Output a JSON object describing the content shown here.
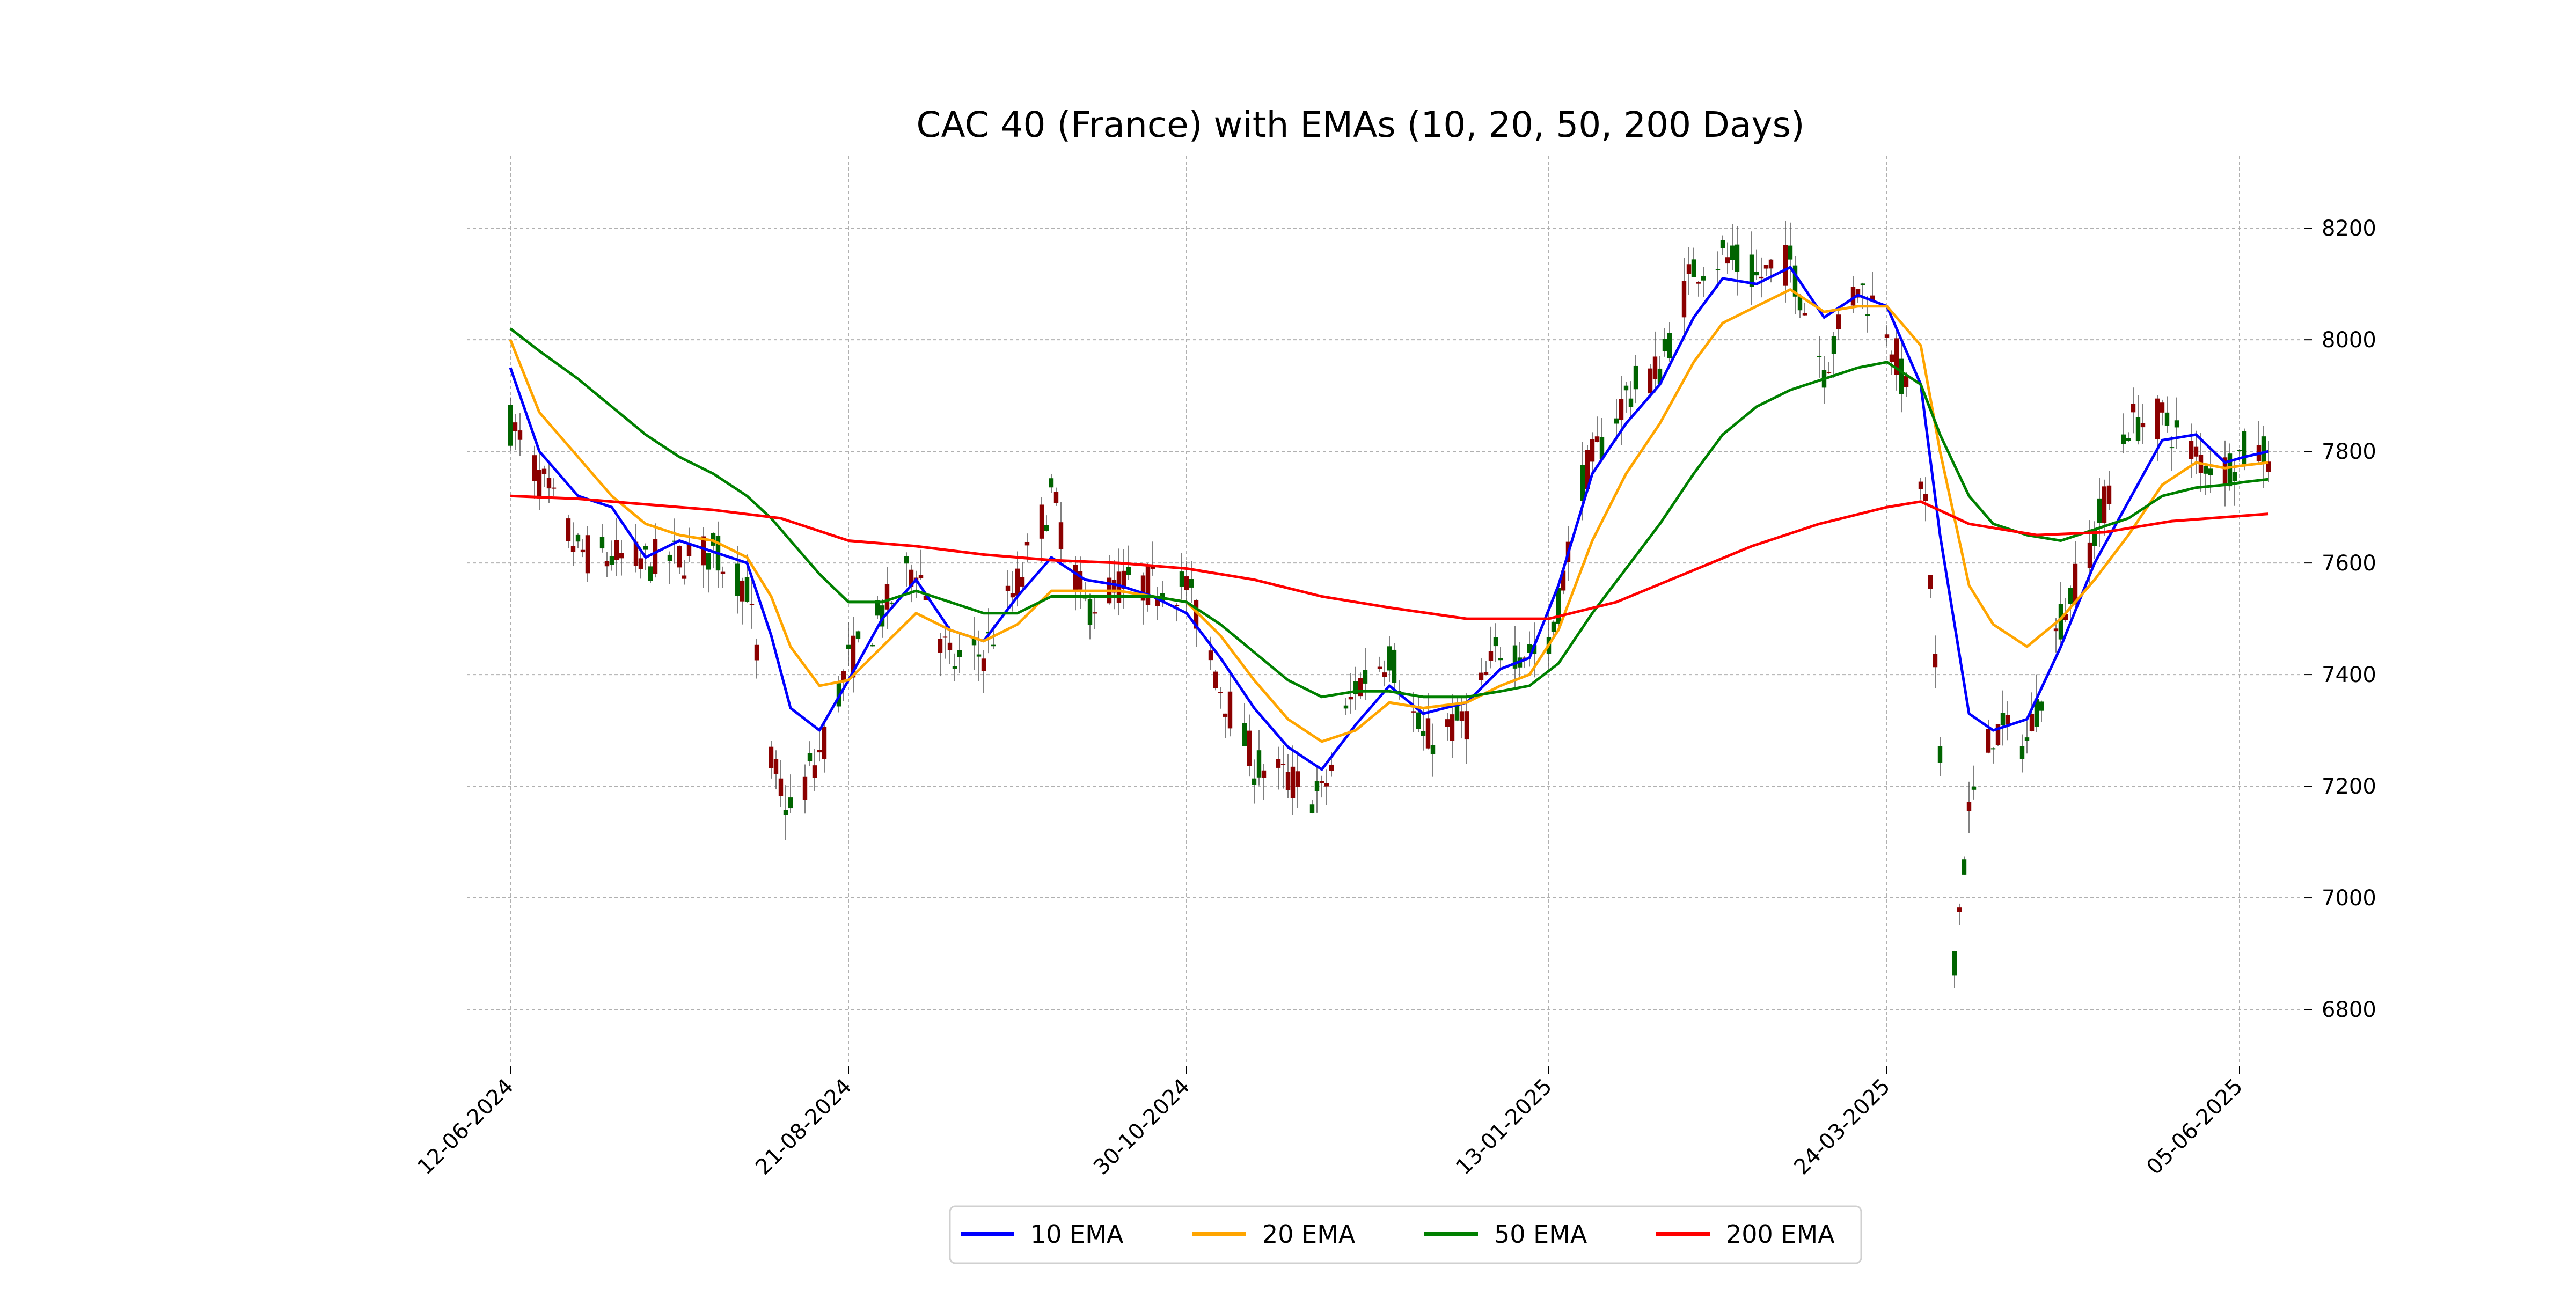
{
  "chart_data": {
    "type": "candlestick",
    "title": "CAC 40 (France) with EMAs (10, 20, 50, 200 Days)",
    "xlabel": "",
    "ylabel": "",
    "y_axis_side": "right",
    "ylim": [
      6700,
      8330
    ],
    "yticks": [
      6800,
      7000,
      7200,
      7400,
      7600,
      7800,
      8000,
      8200
    ],
    "xlim": [
      "2024-06-03",
      "2025-06-18"
    ],
    "xticks": [
      "12-06-2024",
      "21-08-2024",
      "30-10-2024",
      "13-01-2025",
      "24-03-2025",
      "05-06-2025"
    ],
    "xtick_dates": [
      "2024-06-12",
      "2024-08-21",
      "2024-10-30",
      "2025-01-13",
      "2025-03-24",
      "2025-06-05"
    ],
    "grid": true,
    "legend_position": "bottom-center",
    "candle_colors": {
      "up": "#006400",
      "down": "#8b0000"
    },
    "series": [
      {
        "name": "10 EMA",
        "color": "#0000ff",
        "points": [
          [
            "2024-06-12",
            7950
          ],
          [
            "2024-06-18",
            7800
          ],
          [
            "2024-06-26",
            7720
          ],
          [
            "2024-07-03",
            7700
          ],
          [
            "2024-07-10",
            7610
          ],
          [
            "2024-07-17",
            7640
          ],
          [
            "2024-07-24",
            7620
          ],
          [
            "2024-07-31",
            7600
          ],
          [
            "2024-08-05",
            7470
          ],
          [
            "2024-08-09",
            7340
          ],
          [
            "2024-08-15",
            7300
          ],
          [
            "2024-08-21",
            7390
          ],
          [
            "2024-08-28",
            7500
          ],
          [
            "2024-09-04",
            7570
          ],
          [
            "2024-09-11",
            7480
          ],
          [
            "2024-09-18",
            7460
          ],
          [
            "2024-09-25",
            7540
          ],
          [
            "2024-10-02",
            7610
          ],
          [
            "2024-10-09",
            7570
          ],
          [
            "2024-10-16",
            7560
          ],
          [
            "2024-10-23",
            7540
          ],
          [
            "2024-10-30",
            7510
          ],
          [
            "2024-11-06",
            7430
          ],
          [
            "2024-11-13",
            7340
          ],
          [
            "2024-11-20",
            7270
          ],
          [
            "2024-11-27",
            7230
          ],
          [
            "2024-12-04",
            7310
          ],
          [
            "2024-12-11",
            7380
          ],
          [
            "2024-12-18",
            7330
          ],
          [
            "2024-12-27",
            7350
          ],
          [
            "2025-01-03",
            7410
          ],
          [
            "2025-01-09",
            7430
          ],
          [
            "2025-01-15",
            7560
          ],
          [
            "2025-01-22",
            7760
          ],
          [
            "2025-01-29",
            7850
          ],
          [
            "2025-02-05",
            7920
          ],
          [
            "2025-02-12",
            8040
          ],
          [
            "2025-02-18",
            8110
          ],
          [
            "2025-02-25",
            8100
          ],
          [
            "2025-03-04",
            8130
          ],
          [
            "2025-03-11",
            8040
          ],
          [
            "2025-03-18",
            8080
          ],
          [
            "2025-03-24",
            8060
          ],
          [
            "2025-03-31",
            7920
          ],
          [
            "2025-04-04",
            7650
          ],
          [
            "2025-04-10",
            7330
          ],
          [
            "2025-04-15",
            7300
          ],
          [
            "2025-04-22",
            7320
          ],
          [
            "2025-04-29",
            7450
          ],
          [
            "2025-05-06",
            7600
          ],
          [
            "2025-05-13",
            7710
          ],
          [
            "2025-05-20",
            7820
          ],
          [
            "2025-05-27",
            7830
          ],
          [
            "2025-06-02",
            7780
          ],
          [
            "2025-06-06",
            7790
          ],
          [
            "2025-06-11",
            7800
          ]
        ]
      },
      {
        "name": "20 EMA",
        "color": "#ffa500",
        "points": [
          [
            "2024-06-12",
            8000
          ],
          [
            "2024-06-18",
            7870
          ],
          [
            "2024-06-26",
            7790
          ],
          [
            "2024-07-03",
            7720
          ],
          [
            "2024-07-10",
            7670
          ],
          [
            "2024-07-17",
            7650
          ],
          [
            "2024-07-24",
            7640
          ],
          [
            "2024-07-31",
            7610
          ],
          [
            "2024-08-05",
            7540
          ],
          [
            "2024-08-09",
            7450
          ],
          [
            "2024-08-15",
            7380
          ],
          [
            "2024-08-21",
            7390
          ],
          [
            "2024-08-28",
            7450
          ],
          [
            "2024-09-04",
            7510
          ],
          [
            "2024-09-11",
            7480
          ],
          [
            "2024-09-18",
            7460
          ],
          [
            "2024-09-25",
            7490
          ],
          [
            "2024-10-02",
            7550
          ],
          [
            "2024-10-09",
            7550
          ],
          [
            "2024-10-16",
            7550
          ],
          [
            "2024-10-23",
            7540
          ],
          [
            "2024-10-30",
            7530
          ],
          [
            "2024-11-06",
            7470
          ],
          [
            "2024-11-13",
            7390
          ],
          [
            "2024-11-20",
            7320
          ],
          [
            "2024-11-27",
            7280
          ],
          [
            "2024-12-04",
            7300
          ],
          [
            "2024-12-11",
            7350
          ],
          [
            "2024-12-18",
            7340
          ],
          [
            "2024-12-27",
            7350
          ],
          [
            "2025-01-03",
            7380
          ],
          [
            "2025-01-09",
            7400
          ],
          [
            "2025-01-15",
            7480
          ],
          [
            "2025-01-22",
            7640
          ],
          [
            "2025-01-29",
            7760
          ],
          [
            "2025-02-05",
            7850
          ],
          [
            "2025-02-12",
            7960
          ],
          [
            "2025-02-18",
            8030
          ],
          [
            "2025-02-25",
            8060
          ],
          [
            "2025-03-04",
            8090
          ],
          [
            "2025-03-11",
            8050
          ],
          [
            "2025-03-18",
            8060
          ],
          [
            "2025-03-24",
            8060
          ],
          [
            "2025-03-31",
            7990
          ],
          [
            "2025-04-04",
            7800
          ],
          [
            "2025-04-10",
            7560
          ],
          [
            "2025-04-15",
            7490
          ],
          [
            "2025-04-22",
            7450
          ],
          [
            "2025-04-29",
            7500
          ],
          [
            "2025-05-06",
            7570
          ],
          [
            "2025-05-13",
            7650
          ],
          [
            "2025-05-20",
            7740
          ],
          [
            "2025-05-27",
            7780
          ],
          [
            "2025-06-02",
            7770
          ],
          [
            "2025-06-06",
            7775
          ],
          [
            "2025-06-11",
            7780
          ]
        ]
      },
      {
        "name": "50 EMA",
        "color": "#008000",
        "points": [
          [
            "2024-06-12",
            8020
          ],
          [
            "2024-06-18",
            7980
          ],
          [
            "2024-06-26",
            7930
          ],
          [
            "2024-07-03",
            7880
          ],
          [
            "2024-07-10",
            7830
          ],
          [
            "2024-07-17",
            7790
          ],
          [
            "2024-07-24",
            7760
          ],
          [
            "2024-07-31",
            7720
          ],
          [
            "2024-08-05",
            7680
          ],
          [
            "2024-08-09",
            7640
          ],
          [
            "2024-08-15",
            7580
          ],
          [
            "2024-08-21",
            7530
          ],
          [
            "2024-08-28",
            7530
          ],
          [
            "2024-09-04",
            7550
          ],
          [
            "2024-09-11",
            7530
          ],
          [
            "2024-09-18",
            7510
          ],
          [
            "2024-09-25",
            7510
          ],
          [
            "2024-10-02",
            7540
          ],
          [
            "2024-10-09",
            7540
          ],
          [
            "2024-10-16",
            7540
          ],
          [
            "2024-10-23",
            7540
          ],
          [
            "2024-10-30",
            7530
          ],
          [
            "2024-11-06",
            7490
          ],
          [
            "2024-11-13",
            7440
          ],
          [
            "2024-11-20",
            7390
          ],
          [
            "2024-11-27",
            7360
          ],
          [
            "2024-12-04",
            7370
          ],
          [
            "2024-12-11",
            7370
          ],
          [
            "2024-12-18",
            7360
          ],
          [
            "2024-12-27",
            7360
          ],
          [
            "2025-01-03",
            7370
          ],
          [
            "2025-01-09",
            7380
          ],
          [
            "2025-01-15",
            7420
          ],
          [
            "2025-01-22",
            7510
          ],
          [
            "2025-01-29",
            7590
          ],
          [
            "2025-02-05",
            7670
          ],
          [
            "2025-02-12",
            7760
          ],
          [
            "2025-02-18",
            7830
          ],
          [
            "2025-02-25",
            7880
          ],
          [
            "2025-03-04",
            7910
          ],
          [
            "2025-03-11",
            7930
          ],
          [
            "2025-03-18",
            7950
          ],
          [
            "2025-03-24",
            7960
          ],
          [
            "2025-03-31",
            7920
          ],
          [
            "2025-04-04",
            7830
          ],
          [
            "2025-04-10",
            7720
          ],
          [
            "2025-04-15",
            7670
          ],
          [
            "2025-04-22",
            7650
          ],
          [
            "2025-04-29",
            7640
          ],
          [
            "2025-05-06",
            7660
          ],
          [
            "2025-05-13",
            7680
          ],
          [
            "2025-05-20",
            7720
          ],
          [
            "2025-05-27",
            7735
          ],
          [
            "2025-06-02",
            7740
          ],
          [
            "2025-06-06",
            7745
          ],
          [
            "2025-06-11",
            7750
          ]
        ]
      },
      {
        "name": "200 EMA",
        "color": "#ff0000",
        "points": [
          [
            "2024-06-12",
            7720
          ],
          [
            "2024-06-26",
            7715
          ],
          [
            "2024-07-10",
            7705
          ],
          [
            "2024-07-24",
            7695
          ],
          [
            "2024-08-07",
            7680
          ],
          [
            "2024-08-21",
            7640
          ],
          [
            "2024-09-04",
            7630
          ],
          [
            "2024-09-18",
            7615
          ],
          [
            "2024-10-02",
            7605
          ],
          [
            "2024-10-16",
            7600
          ],
          [
            "2024-10-30",
            7590
          ],
          [
            "2024-11-13",
            7570
          ],
          [
            "2024-11-27",
            7540
          ],
          [
            "2024-12-11",
            7520
          ],
          [
            "2024-12-27",
            7500
          ],
          [
            "2025-01-13",
            7500
          ],
          [
            "2025-01-27",
            7530
          ],
          [
            "2025-02-10",
            7580
          ],
          [
            "2025-02-24",
            7630
          ],
          [
            "2025-03-10",
            7670
          ],
          [
            "2025-03-24",
            7700
          ],
          [
            "2025-03-31",
            7710
          ],
          [
            "2025-04-10",
            7670
          ],
          [
            "2025-04-24",
            7650
          ],
          [
            "2025-05-08",
            7655
          ],
          [
            "2025-05-22",
            7675
          ],
          [
            "2025-06-11",
            7688
          ]
        ]
      }
    ],
    "candles_wave": [
      [
        "2024-06-12",
        7850
      ],
      [
        "2024-06-26",
        7620
      ],
      [
        "2024-07-10",
        7600
      ],
      [
        "2024-07-24",
        7620
      ],
      [
        "2024-07-31",
        7560
      ],
      [
        "2024-08-05",
        7240
      ],
      [
        "2024-08-09",
        7150
      ],
      [
        "2024-08-15",
        7260
      ],
      [
        "2024-08-21",
        7420
      ],
      [
        "2024-09-04",
        7600
      ],
      [
        "2024-09-11",
        7420
      ],
      [
        "2024-09-18",
        7440
      ],
      [
        "2024-09-25",
        7560
      ],
      [
        "2024-10-02",
        7720
      ],
      [
        "2024-10-09",
        7520
      ],
      [
        "2024-10-16",
        7560
      ],
      [
        "2024-10-30",
        7560
      ],
      [
        "2024-11-06",
        7380
      ],
      [
        "2024-11-13",
        7240
      ],
      [
        "2024-11-27",
        7180
      ],
      [
        "2024-12-04",
        7380
      ],
      [
        "2024-12-11",
        7440
      ],
      [
        "2024-12-18",
        7280
      ],
      [
        "2024-12-27",
        7320
      ],
      [
        "2025-01-03",
        7450
      ],
      [
        "2025-01-13",
        7440
      ],
      [
        "2025-01-20",
        7750
      ],
      [
        "2025-01-29",
        7900
      ],
      [
        "2025-02-05",
        7950
      ],
      [
        "2025-02-12",
        8130
      ],
      [
        "2025-02-18",
        8150
      ],
      [
        "2025-02-25",
        8110
      ],
      [
        "2025-03-04",
        8140
      ],
      [
        "2025-03-11",
        7950
      ],
      [
        "2025-03-18",
        8100
      ],
      [
        "2025-03-24",
        8030
      ],
      [
        "2025-03-28",
        7900
      ],
      [
        "2025-04-01",
        7700
      ],
      [
        "2025-04-04",
        7250
      ],
      [
        "2025-04-07",
        6900
      ],
      [
        "2025-04-10",
        7150
      ],
      [
        "2025-04-15",
        7300
      ],
      [
        "2025-04-22",
        7280
      ],
      [
        "2025-04-29",
        7500
      ],
      [
        "2025-05-06",
        7650
      ],
      [
        "2025-05-13",
        7850
      ],
      [
        "2025-05-20",
        7860
      ],
      [
        "2025-05-27",
        7790
      ],
      [
        "2025-06-02",
        7770
      ],
      [
        "2025-06-06",
        7800
      ],
      [
        "2025-06-11",
        7800
      ]
    ]
  }
}
